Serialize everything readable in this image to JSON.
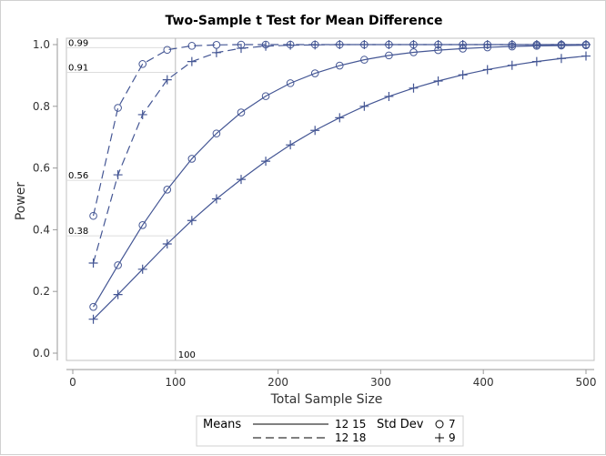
{
  "chart_data": {
    "type": "line",
    "title": "Two-Sample t Test for Mean Difference",
    "xlabel": "Total Sample Size",
    "ylabel": "Power",
    "xlim": [
      0,
      500
    ],
    "ylim": [
      0,
      1
    ],
    "xticks": [
      "0",
      "100",
      "200",
      "300",
      "400",
      "500"
    ],
    "yticks": [
      "0.0",
      "0.2",
      "0.4",
      "0.6",
      "0.8",
      "1.0"
    ],
    "grid": false,
    "color": "#445694",
    "x": [
      20,
      44,
      68,
      92,
      116,
      140,
      164,
      188,
      212,
      236,
      260,
      284,
      308,
      332,
      356,
      380,
      404,
      428,
      452,
      476,
      500
    ],
    "series": [
      {
        "means": "12 15",
        "std_dev": "7",
        "line": "solid",
        "marker": "circle",
        "values": [
          0.15,
          0.285,
          0.415,
          0.53,
          0.63,
          0.712,
          0.78,
          0.833,
          0.875,
          0.907,
          0.932,
          0.951,
          0.965,
          0.975,
          0.982,
          0.987,
          0.991,
          0.994,
          0.996,
          0.997,
          0.998
        ]
      },
      {
        "means": "12 15",
        "std_dev": "9",
        "line": "solid",
        "marker": "plus",
        "values": [
          0.11,
          0.19,
          0.272,
          0.354,
          0.43,
          0.5,
          0.563,
          0.622,
          0.675,
          0.722,
          0.763,
          0.8,
          0.832,
          0.859,
          0.882,
          0.902,
          0.919,
          0.933,
          0.945,
          0.955,
          0.963
        ]
      },
      {
        "means": "12 18",
        "std_dev": "7",
        "line": "dashed",
        "marker": "circle",
        "values": [
          0.445,
          0.795,
          0.937,
          0.983,
          0.996,
          0.999,
          1,
          1,
          1,
          1,
          1,
          1,
          1,
          1,
          1,
          1,
          1,
          1,
          1,
          1,
          1
        ]
      },
      {
        "means": "12 18",
        "std_dev": "9",
        "line": "dashed",
        "marker": "plus",
        "values": [
          0.292,
          0.578,
          0.773,
          0.886,
          0.945,
          0.974,
          0.988,
          0.995,
          0.998,
          0.999,
          1,
          1,
          1,
          1,
          1,
          1,
          1,
          1,
          1,
          1,
          1
        ]
      }
    ],
    "reference_lines": {
      "x": {
        "value": 100,
        "label": "100"
      },
      "y": [
        {
          "value": 0.99,
          "label": "0.99"
        },
        {
          "value": 0.91,
          "label": "0.91"
        },
        {
          "value": 0.56,
          "label": "0.56"
        },
        {
          "value": 0.38,
          "label": "0.38"
        }
      ]
    },
    "legend": {
      "placement": "bottom",
      "means_title": "Means",
      "means_entries": [
        "12 15",
        "12 18"
      ],
      "sd_title": "Std Dev",
      "sd_entries": [
        "7",
        "9"
      ]
    }
  }
}
